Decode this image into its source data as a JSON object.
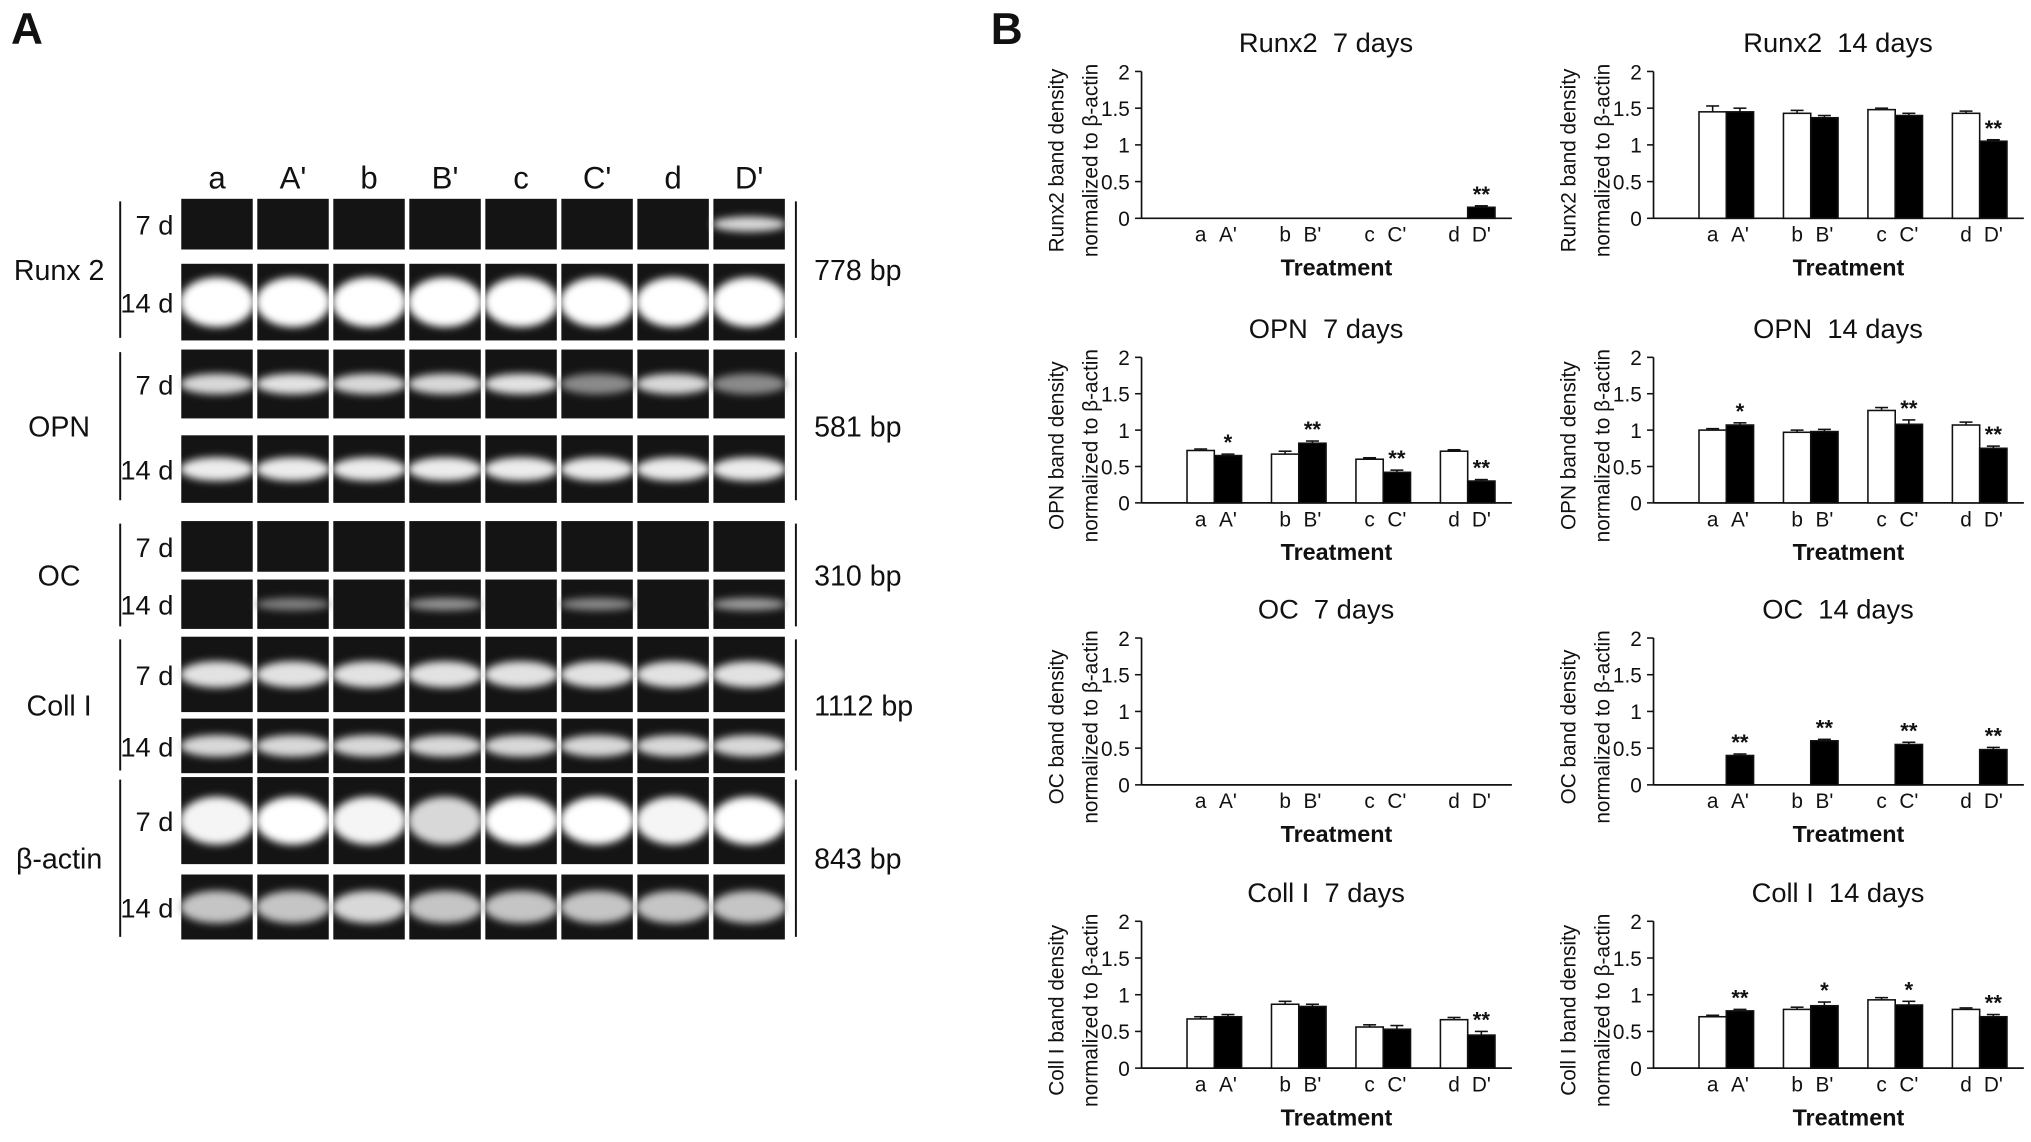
{
  "panel_a": {
    "label": "A",
    "lanes": [
      "a",
      "A'",
      "b",
      "B'",
      "c",
      "C'",
      "d",
      "D'"
    ],
    "genes": [
      {
        "name": "Runx 2",
        "times": [
          "7 d",
          "14 d"
        ],
        "size": "778 bp"
      },
      {
        "name": "OPN",
        "times": [
          "7 d",
          "14 d"
        ],
        "size": "581 bp"
      },
      {
        "name": "OC",
        "times": [
          "7 d",
          "14 d"
        ],
        "size": "310 bp"
      },
      {
        "name": "Coll I",
        "times": [
          "7 d",
          "14 d"
        ],
        "size": "1112 bp"
      },
      {
        "name": "β-actin",
        "times": [
          "7 d",
          "14 d"
        ],
        "size": "843 bp"
      }
    ]
  },
  "panel_b_label": "B",
  "chart_data": [
    {
      "type": "bar",
      "title": "Runx2  7 days",
      "ylabel": [
        "Runx2 band density",
        "normalized to β-actin"
      ],
      "xlabel": "Treatment",
      "categories": [
        "a",
        "A'",
        "b",
        "B'",
        "c",
        "C'",
        "d",
        "D'"
      ],
      "values": [
        0,
        0,
        0,
        0,
        0,
        0,
        0,
        0.15
      ],
      "errors": [
        null,
        null,
        null,
        null,
        null,
        null,
        null,
        0.02
      ],
      "colors": [
        "#ffffff",
        "#000000",
        "#ffffff",
        "#000000",
        "#ffffff",
        "#000000",
        "#ffffff",
        "#000000"
      ],
      "annotations": [
        null,
        null,
        null,
        null,
        null,
        null,
        null,
        "**"
      ],
      "ylim": [
        0,
        2
      ],
      "yticks": [
        0,
        0.5,
        1,
        1.5,
        2
      ]
    },
    {
      "type": "bar",
      "title": "Runx2  14 days",
      "ylabel": [
        "Runx2 band density",
        "normalized to β-actin"
      ],
      "xlabel": "Treatment",
      "categories": [
        "a",
        "A'",
        "b",
        "B'",
        "c",
        "C'",
        "d",
        "D'"
      ],
      "values": [
        1.45,
        1.45,
        1.43,
        1.37,
        1.48,
        1.4,
        1.43,
        1.05
      ],
      "errors": [
        0.08,
        0.05,
        0.04,
        0.03,
        0.02,
        0.03,
        0.03,
        0.02
      ],
      "colors": [
        "#ffffff",
        "#000000",
        "#ffffff",
        "#000000",
        "#ffffff",
        "#000000",
        "#ffffff",
        "#000000"
      ],
      "annotations": [
        null,
        null,
        null,
        null,
        null,
        null,
        null,
        "**"
      ],
      "ylim": [
        0,
        2
      ],
      "yticks": [
        0,
        0.5,
        1,
        1.5,
        2
      ]
    },
    {
      "type": "bar",
      "title": "OPN  7 days",
      "ylabel": [
        "OPN band density",
        "normalized to β-actin"
      ],
      "xlabel": "Treatment",
      "categories": [
        "a",
        "A'",
        "b",
        "B'",
        "c",
        "C'",
        "d",
        "D'"
      ],
      "values": [
        0.72,
        0.65,
        0.67,
        0.82,
        0.6,
        0.42,
        0.71,
        0.3
      ],
      "errors": [
        0.02,
        0.02,
        0.04,
        0.03,
        0.02,
        0.03,
        0.02,
        0.02
      ],
      "colors": [
        "#ffffff",
        "#000000",
        "#ffffff",
        "#000000",
        "#ffffff",
        "#000000",
        "#ffffff",
        "#000000"
      ],
      "annotations": [
        null,
        "*",
        null,
        "**",
        null,
        "**",
        null,
        "**"
      ],
      "ylim": [
        0,
        2
      ],
      "yticks": [
        0,
        0.5,
        1,
        1.5,
        2
      ]
    },
    {
      "type": "bar",
      "title": "OPN  14 days",
      "ylabel": [
        "OPN band density",
        "normalized to β-actin"
      ],
      "xlabel": "Treatment",
      "categories": [
        "a",
        "A'",
        "b",
        "B'",
        "c",
        "C'",
        "d",
        "D'"
      ],
      "values": [
        1.0,
        1.07,
        0.97,
        0.98,
        1.27,
        1.08,
        1.07,
        0.75
      ],
      "errors": [
        0.02,
        0.03,
        0.03,
        0.03,
        0.04,
        0.06,
        0.04,
        0.03
      ],
      "colors": [
        "#ffffff",
        "#000000",
        "#ffffff",
        "#000000",
        "#ffffff",
        "#000000",
        "#ffffff",
        "#000000"
      ],
      "annotations": [
        null,
        "*",
        null,
        null,
        null,
        "**",
        null,
        "**"
      ],
      "ylim": [
        0,
        2
      ],
      "yticks": [
        0,
        0.5,
        1,
        1.5,
        2
      ]
    },
    {
      "type": "bar",
      "title": "OC  7 days",
      "ylabel": [
        "OC band density",
        "normalized to β-actin"
      ],
      "xlabel": "Treatment",
      "categories": [
        "a",
        "A'",
        "b",
        "B'",
        "c",
        "C'",
        "d",
        "D'"
      ],
      "values": [
        0,
        0,
        0,
        0,
        0,
        0,
        0,
        0
      ],
      "errors": [
        null,
        null,
        null,
        null,
        null,
        null,
        null,
        null
      ],
      "colors": [
        "#ffffff",
        "#000000",
        "#ffffff",
        "#000000",
        "#ffffff",
        "#000000",
        "#ffffff",
        "#000000"
      ],
      "annotations": [
        null,
        null,
        null,
        null,
        null,
        null,
        null,
        null
      ],
      "ylim": [
        0,
        2
      ],
      "yticks": [
        0,
        0.5,
        1,
        1.5,
        2
      ]
    },
    {
      "type": "bar",
      "title": "OC  14 days",
      "ylabel": [
        "OC band density",
        "normalized to β-actin"
      ],
      "xlabel": "Treatment",
      "categories": [
        "a",
        "A'",
        "b",
        "B'",
        "c",
        "C'",
        "d",
        "D'"
      ],
      "values": [
        0,
        0.4,
        0,
        0.6,
        0,
        0.55,
        0,
        0.48
      ],
      "errors": [
        null,
        0.02,
        null,
        0.02,
        null,
        0.03,
        null,
        0.03
      ],
      "colors": [
        "#ffffff",
        "#000000",
        "#ffffff",
        "#000000",
        "#ffffff",
        "#000000",
        "#ffffff",
        "#000000"
      ],
      "annotations": [
        null,
        "**",
        null,
        "**",
        null,
        "**",
        null,
        "**"
      ],
      "ylim": [
        0,
        2
      ],
      "yticks": [
        0,
        0.5,
        1,
        1.5,
        2
      ]
    },
    {
      "type": "bar",
      "title": "Coll I  7 days",
      "ylabel": [
        "Coll I band density",
        "normalized to β-actin"
      ],
      "xlabel": "Treatment",
      "categories": [
        "a",
        "A'",
        "b",
        "B'",
        "c",
        "C'",
        "d",
        "D'"
      ],
      "values": [
        0.67,
        0.7,
        0.87,
        0.84,
        0.56,
        0.53,
        0.66,
        0.45
      ],
      "errors": [
        0.03,
        0.03,
        0.04,
        0.03,
        0.03,
        0.05,
        0.03,
        0.05
      ],
      "colors": [
        "#ffffff",
        "#000000",
        "#ffffff",
        "#000000",
        "#ffffff",
        "#000000",
        "#ffffff",
        "#000000"
      ],
      "annotations": [
        null,
        null,
        null,
        null,
        null,
        null,
        null,
        "**"
      ],
      "ylim": [
        0,
        2
      ],
      "yticks": [
        0,
        0.5,
        1,
        1.5,
        2
      ]
    },
    {
      "type": "bar",
      "title": "Coll I  14 days",
      "ylabel": [
        "Coll I band density",
        "normalized to β-actin"
      ],
      "xlabel": "Treatment",
      "categories": [
        "a",
        "A'",
        "b",
        "B'",
        "c",
        "C'",
        "d",
        "D'"
      ],
      "values": [
        0.7,
        0.78,
        0.8,
        0.85,
        0.93,
        0.86,
        0.8,
        0.7
      ],
      "errors": [
        0.02,
        0.02,
        0.03,
        0.05,
        0.03,
        0.05,
        0.02,
        0.03
      ],
      "colors": [
        "#ffffff",
        "#000000",
        "#ffffff",
        "#000000",
        "#ffffff",
        "#000000",
        "#ffffff",
        "#000000"
      ],
      "annotations": [
        null,
        "**",
        null,
        "*",
        null,
        "*",
        null,
        "**"
      ],
      "ylim": [
        0,
        2
      ],
      "yticks": [
        0,
        0.5,
        1,
        1.5,
        2
      ]
    }
  ]
}
